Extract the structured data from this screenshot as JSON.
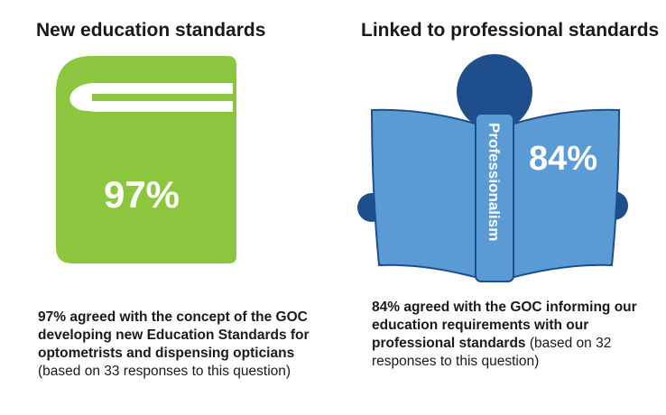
{
  "left": {
    "heading": "New education standards",
    "percent": "97%",
    "caption_bold": "97% agreed with the concept of the GOC developing new Education Standards for optometrists and dispensing opticians",
    "caption_light": " (based on 33 responses to this question)",
    "book_color": "#8cc63f"
  },
  "right": {
    "heading": "Linked to professional standards",
    "percent": "84%",
    "spine_label": "Professionalism",
    "caption_bold": "84% agreed with the GOC informing our education requirements with our professional standards",
    "caption_light": " (based on 32 responses to this question)",
    "book_color": "#5b9bd5",
    "figure_color": "#1f4e8c"
  }
}
